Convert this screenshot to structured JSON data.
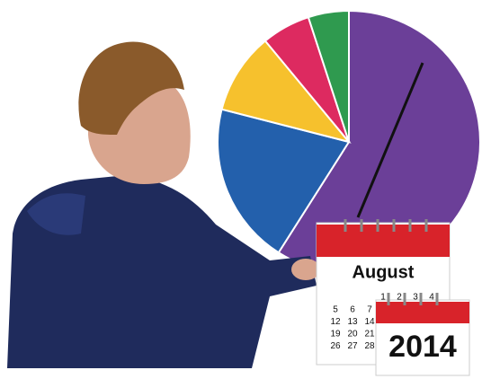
{
  "pie": {
    "slices": [
      {
        "value": 59,
        "color": "#6b3f98"
      },
      {
        "value": 20,
        "color": "#2360ac"
      },
      {
        "value": 10,
        "color": "#f6c12d"
      },
      {
        "value": 6,
        "color": "#dd2a60"
      },
      {
        "value": 5,
        "color": "#2f9a4f"
      }
    ]
  },
  "calendar_month": {
    "title": "August",
    "dates": [
      [
        "5",
        "6",
        "7"
      ],
      [
        "12",
        "13",
        "14"
      ],
      [
        "19",
        "20",
        "21"
      ],
      [
        "26",
        "27",
        "28"
      ]
    ]
  },
  "calendar_year": {
    "title": "2014",
    "dates": [
      "1",
      "2",
      "3",
      "4"
    ]
  }
}
